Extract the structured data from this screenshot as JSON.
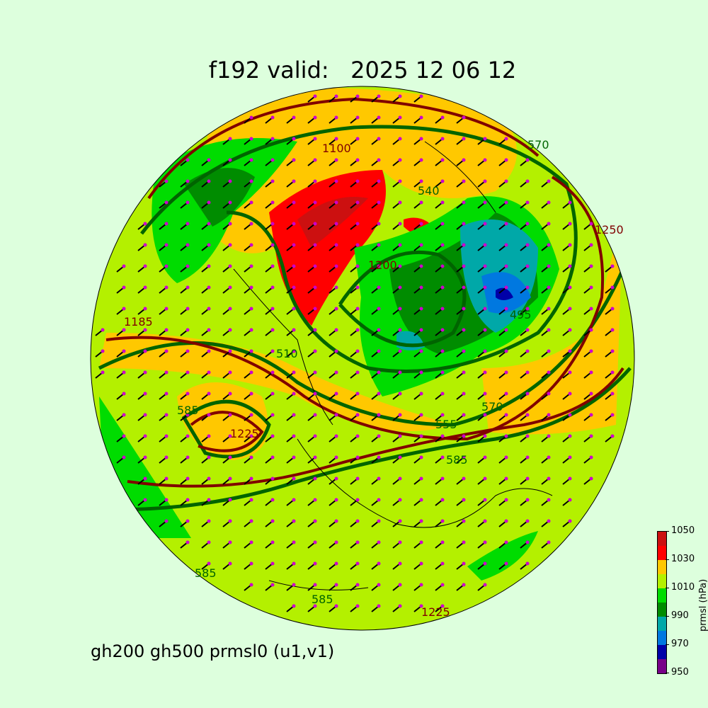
{
  "title": "f192 valid:   2025 12 06 12",
  "subtitle": "gh200 gh500 prmsl0 (u1,v1)",
  "colorbar": {
    "label": "prmsl (hPa)",
    "ticks": [
      "1050",
      "1030",
      "1010",
      "990",
      "970",
      "950"
    ],
    "levels": [
      950,
      960,
      970,
      980,
      990,
      1000,
      1010,
      1020,
      1030,
      1040,
      1050
    ],
    "colors": [
      "#780088",
      "#0000a8",
      "#0078e0",
      "#00a8a8",
      "#008c00",
      "#00dc00",
      "#b4f000",
      "#ffc800",
      "#ff0000",
      "#cc1010"
    ]
  },
  "contour_labels": {
    "gh200": [
      "1225",
      "1250",
      "1200",
      "1185",
      "1225",
      "1100"
    ],
    "gh500": [
      "570",
      "540",
      "510",
      "495",
      "585",
      "585",
      "570",
      "585",
      "585",
      "555"
    ]
  },
  "line_colors": {
    "gh200": "#800000",
    "gh500": "#006400",
    "coast": "#000000",
    "barbs": "#000000",
    "points": "#cc00cc"
  }
}
